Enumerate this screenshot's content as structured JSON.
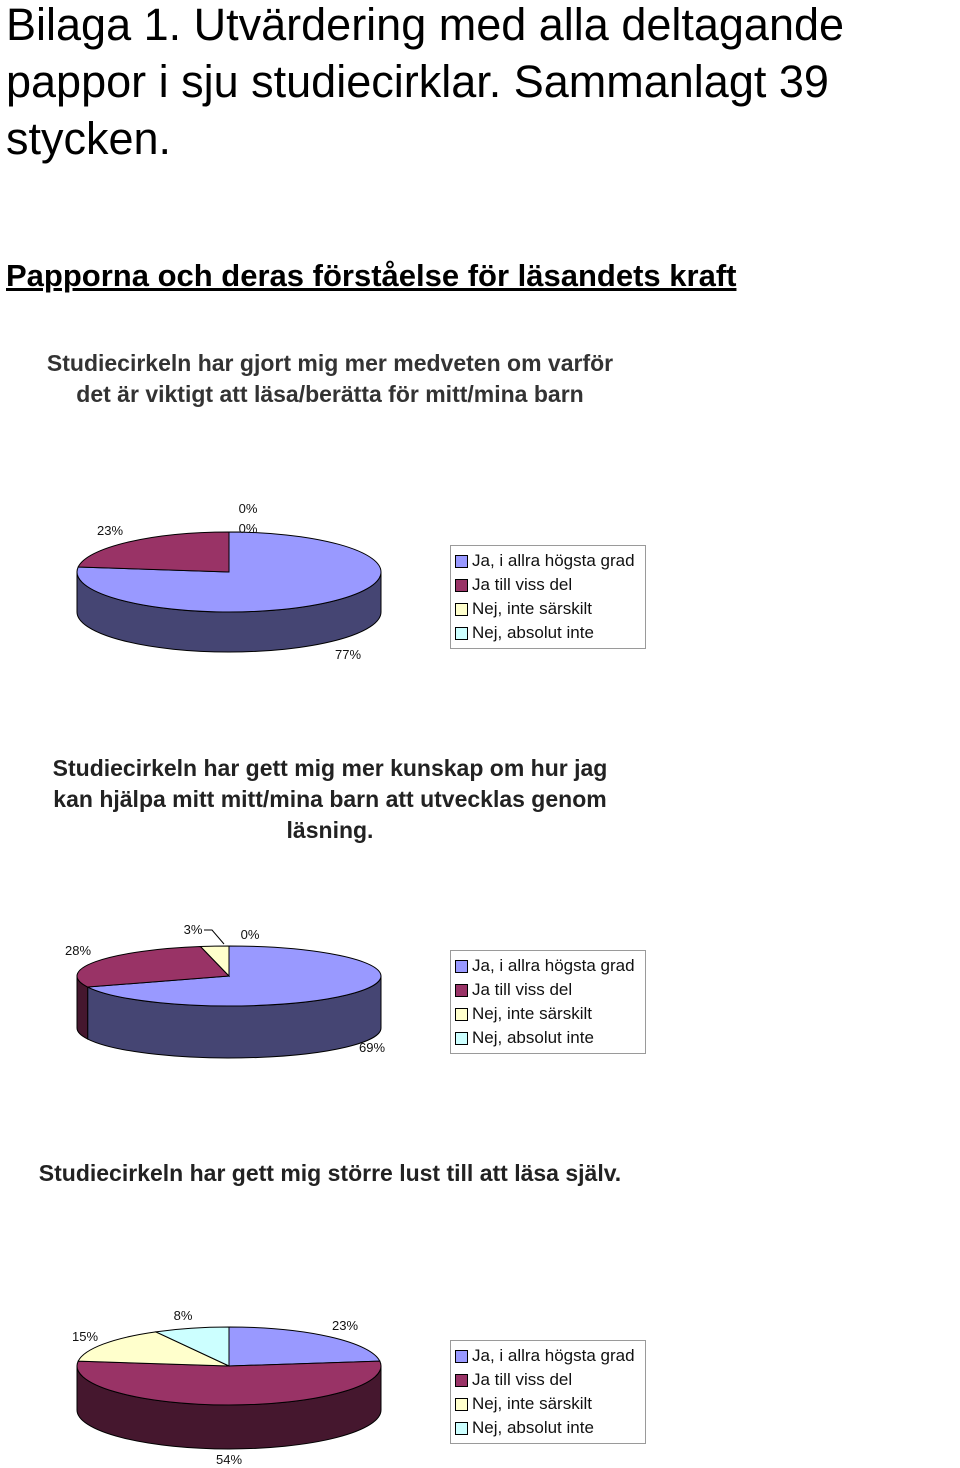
{
  "document": {
    "title": "Bilaga 1. Utvärdering med alla deltagande pappor i sju studiecirklar. Sammanlagt 39 stycken.",
    "section_heading": "Papporna och deras förståelse för läsandets kraft"
  },
  "colors": {
    "ja_i_allra_hogsta_grad": "#9999ff",
    "ja_till_viss_del": "#993366",
    "nej_inte_sarskilt": "#ffffcc",
    "nej_absolut_inte": "#ccffff"
  },
  "chart_data": [
    {
      "type": "pie",
      "title": "Studiecirkeln har gjort mig mer medveten om varför det är viktigt att läsa/berätta för mitt/mina barn",
      "categories": [
        "Ja, i allra högsta grad",
        "Ja till viss del",
        "Nej, inte särskilt",
        "Nej, absolut inte"
      ],
      "values": [
        77,
        23,
        0,
        0
      ],
      "data_labels": [
        "77%",
        "23%",
        "0%",
        "0%"
      ],
      "legend_position": "right",
      "style": "3d"
    },
    {
      "type": "pie",
      "title": "Studiecirkeln har gett mig mer kunskap om hur jag kan hjälpa mitt mitt/mina barn att utvecklas genom läsning.",
      "categories": [
        "Ja, i allra högsta grad",
        "Ja till viss del",
        "Nej, inte särskilt",
        "Nej, absolut inte"
      ],
      "values": [
        69,
        28,
        3,
        0
      ],
      "data_labels": [
        "69%",
        "28%",
        "3%",
        "0%"
      ],
      "legend_position": "right",
      "style": "3d"
    },
    {
      "type": "pie",
      "title": "Studiecirkeln har gett mig större lust till att läsa själv.",
      "categories": [
        "Ja, i allra högsta grad",
        "Ja till viss del",
        "Nej, inte särskilt",
        "Nej, absolut inte"
      ],
      "values": [
        23,
        54,
        15,
        8
      ],
      "data_labels": [
        "23%",
        "54%",
        "15%",
        "8%"
      ],
      "legend_position": "right",
      "style": "3d"
    }
  ]
}
